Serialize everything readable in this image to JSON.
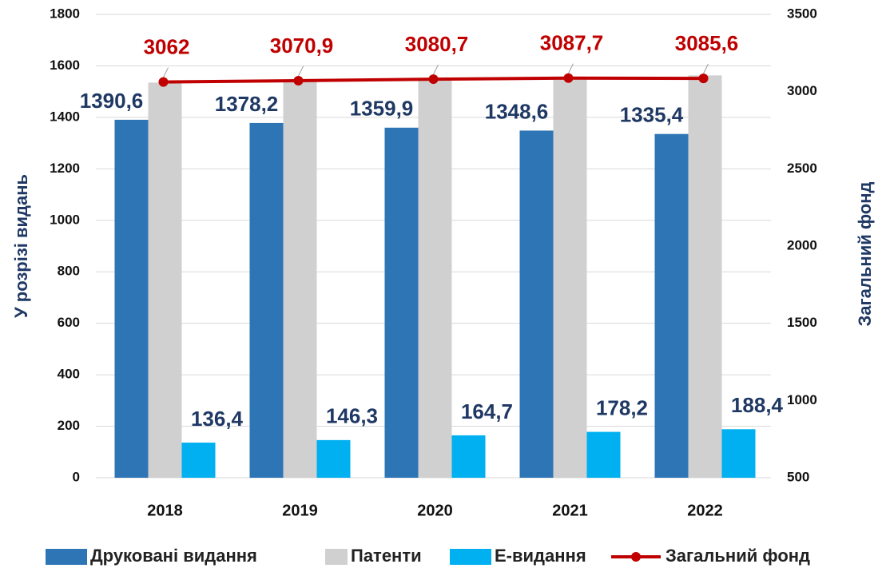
{
  "chart_data": {
    "type": "bar",
    "categories": [
      "2018",
      "2019",
      "2020",
      "2021",
      "2022"
    ],
    "series": [
      {
        "name": "Друковані видання",
        "color": "#2e75b6",
        "values": [
          1390.6,
          1378.2,
          1359.9,
          1348.6,
          1335.4
        ],
        "value_labels": [
          "1390,6",
          "1378,2",
          "1359,9",
          "1348,6",
          "1335,4"
        ]
      },
      {
        "name": "Патенти",
        "color": "#d0d0d0",
        "values": [
          1535,
          1540,
          1550,
          1555,
          1563
        ]
      },
      {
        "name": "Е-видання",
        "color": "#00b0f0",
        "values": [
          136.4,
          146.3,
          164.7,
          178.2,
          188.4
        ],
        "value_labels": [
          "136,4",
          "146,3",
          "164,7",
          "178,2",
          "188,4"
        ]
      },
      {
        "name": "Загальний фонд",
        "type": "line",
        "axis": "y2",
        "color": "#c00000",
        "values": [
          3062,
          3070.9,
          3080.7,
          3087.7,
          3085.6
        ],
        "value_labels": [
          "3062",
          "3070,9",
          "3080,7",
          "3087,7",
          "3085,6"
        ]
      }
    ],
    "y_label": "У розрізі видань",
    "y2_label": "Загальний фонд",
    "ylim": [
      0,
      1800
    ],
    "yticks": [
      0,
      200,
      400,
      600,
      800,
      1000,
      1200,
      1400,
      1600,
      1800
    ],
    "y2lim": [
      500,
      3500
    ],
    "y2ticks": [
      500,
      1000,
      1500,
      2000,
      2500,
      3000,
      3500
    ],
    "grid": true,
    "legend": "bottom"
  }
}
